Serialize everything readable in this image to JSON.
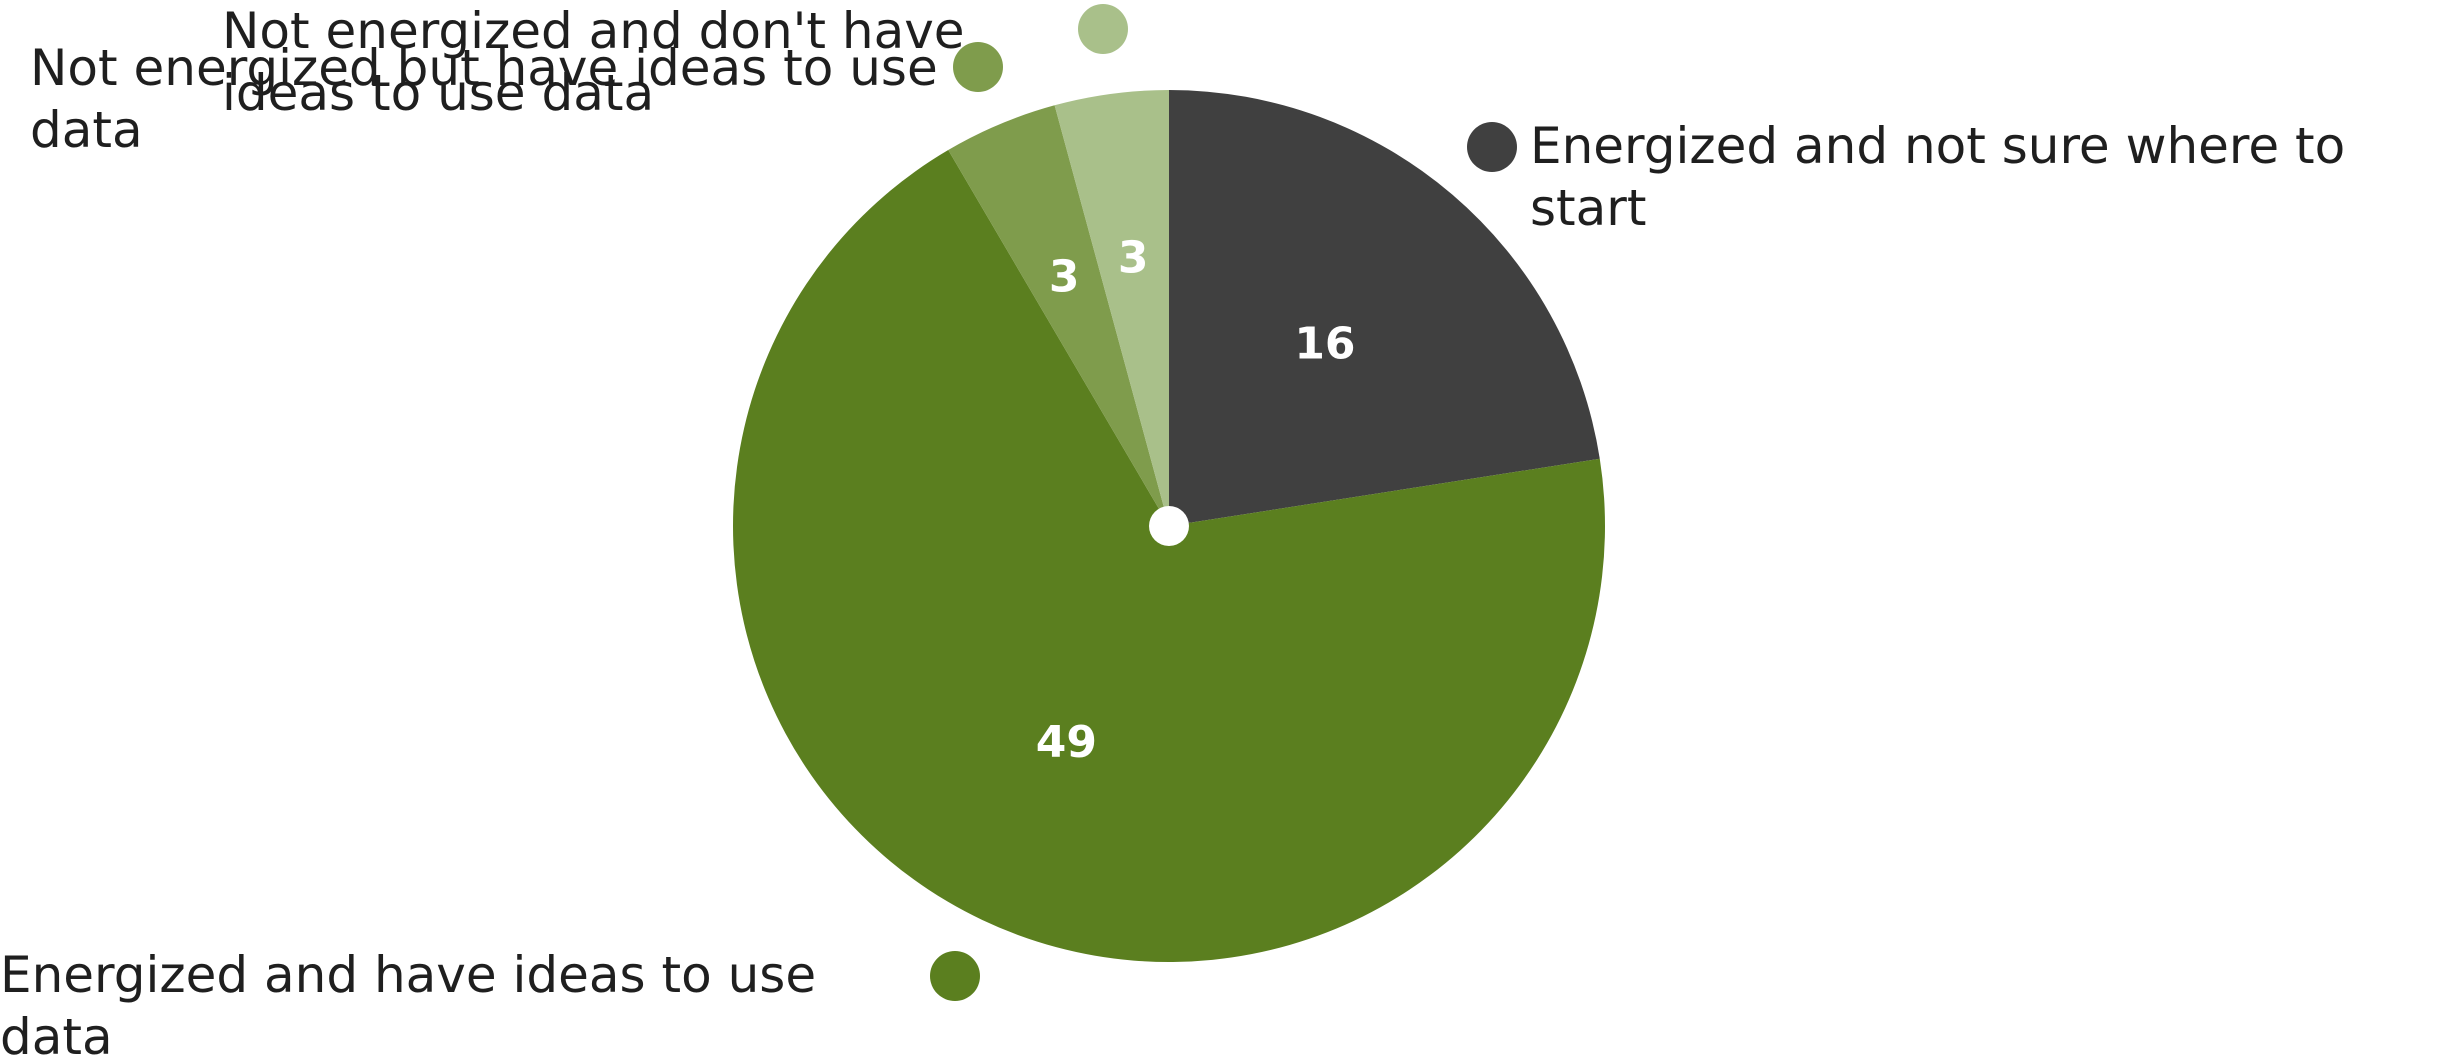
{
  "chart_data": {
    "type": "pie",
    "categories": [
      "Energized and not sure where to start",
      "Energized and have ideas to use data",
      "Not energized but have ideas to use data",
      "Not energized and don't have ideas to use data"
    ],
    "values": [
      16,
      49,
      3,
      3
    ],
    "labels": [
      "16",
      "49",
      "3",
      "3"
    ],
    "colors": [
      "#404040",
      "#5b7f1f",
      "#7f9c4c",
      "#a9c08a"
    ],
    "title": "",
    "legend_placement": "around-pie"
  },
  "legend": {
    "item0": "Energized and not sure where to start",
    "item1": "Energized and have ideas to use data",
    "item2": "Not energized but have ideas to use data",
    "item3": "Not energized and don't have ideas to use data"
  }
}
